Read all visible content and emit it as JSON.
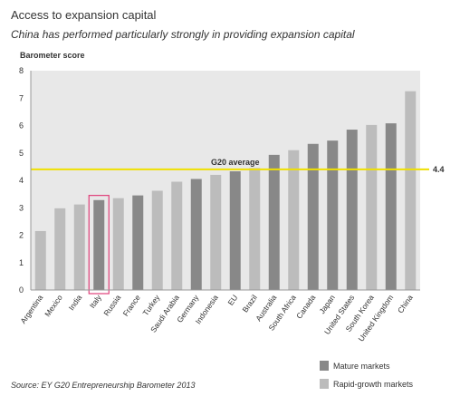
{
  "title": "Access to expansion capital",
  "subtitle": "China has performed particularly strongly in providing expansion capital",
  "source": "Source: EY G20 Entrepreneurship Barometer 2013",
  "colors": {
    "mature": "#888888",
    "rapid": "#bcbcbc",
    "average_line": "#f0e000",
    "highlight": "#e0407a",
    "axis": "#999999",
    "plot_bg": "#e8e8e8"
  },
  "chart_data": {
    "type": "bar",
    "title": "Access to expansion capital",
    "subtitle": "China has performed particularly strongly in providing expansion capital",
    "ylabel": "Barometer score",
    "xlabel": "",
    "ylim": [
      0,
      8
    ],
    "yticks": [
      "0",
      "1",
      "2",
      "3",
      "4",
      "5",
      "6",
      "7",
      "8"
    ],
    "grid": false,
    "categories": [
      "Argentina",
      "Mexico",
      "India",
      "Italy",
      "Russia",
      "France",
      "Turkey",
      "Saudi Arabia",
      "Germany",
      "Indonesia",
      "EU",
      "Brazil",
      "Australia",
      "South Africa",
      "Canada",
      "Japan",
      "United States",
      "South Korea",
      "United Kingdom",
      "China"
    ],
    "values": [
      2.15,
      2.98,
      3.12,
      3.28,
      3.35,
      3.45,
      3.62,
      3.95,
      4.05,
      4.2,
      4.33,
      4.45,
      4.93,
      5.1,
      5.33,
      5.45,
      5.85,
      6.02,
      6.08,
      7.25
    ],
    "groups": [
      "rapid",
      "rapid",
      "rapid",
      "mature",
      "rapid",
      "mature",
      "rapid",
      "rapid",
      "mature",
      "rapid",
      "mature",
      "rapid",
      "mature",
      "rapid",
      "mature",
      "mature",
      "mature",
      "rapid",
      "mature",
      "rapid"
    ],
    "highlighted_category": "Italy",
    "average": {
      "label": "G20 average",
      "value": 4.4,
      "value_label": "4.4"
    },
    "legend": [
      {
        "name": "Mature markets",
        "group": "mature"
      },
      {
        "name": "Rapid-growth markets",
        "group": "rapid"
      }
    ],
    "legend_position": "bottom-right"
  }
}
